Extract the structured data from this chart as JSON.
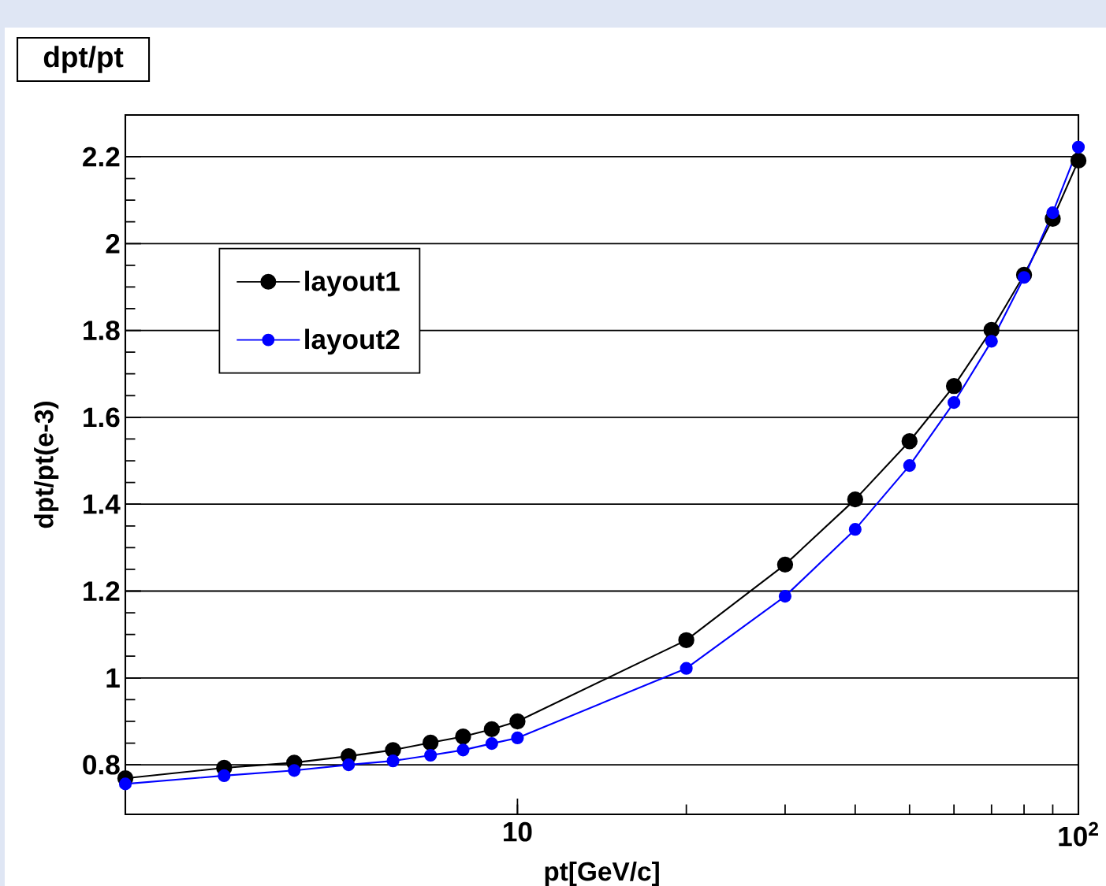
{
  "chart_data": {
    "type": "line",
    "title": "dpt/pt",
    "xlabel": "pt[GeV/c]",
    "ylabel": "dpt/pt(e-3)",
    "log": "x",
    "grid": "y",
    "legend": "top left",
    "marker": "circle",
    "line_style": "solid",
    "xlim": [
      2,
      100
    ],
    "ylim": [
      0.686,
      2.296
    ],
    "xticks": [
      10,
      {
        "value": 100,
        "label": "10$^{2}$"
      }
    ],
    "yticks": [
      0.8,
      1,
      1.2,
      1.4,
      1.6,
      1.8,
      2,
      2.2
    ],
    "x": [
      2,
      3,
      4,
      5,
      6,
      7,
      8,
      9,
      10,
      20,
      30,
      40,
      50,
      60,
      70,
      80,
      90,
      100
    ],
    "series": [
      {
        "name": "layout1",
        "color": "#000000",
        "values": [
          0.769,
          0.793,
          0.805,
          0.82,
          0.834,
          0.851,
          0.865,
          0.882,
          0.9,
          1.087,
          1.261,
          1.411,
          1.545,
          1.672,
          1.801,
          1.928,
          2.057,
          2.191
        ]
      },
      {
        "name": "layout2",
        "color": "#0000ff",
        "values": [
          0.756,
          0.775,
          0.787,
          0.8,
          0.809,
          0.822,
          0.834,
          0.849,
          0.862,
          1.022,
          1.188,
          1.342,
          1.489,
          1.634,
          1.775,
          1.922,
          2.071,
          2.222
        ]
      }
    ]
  }
}
